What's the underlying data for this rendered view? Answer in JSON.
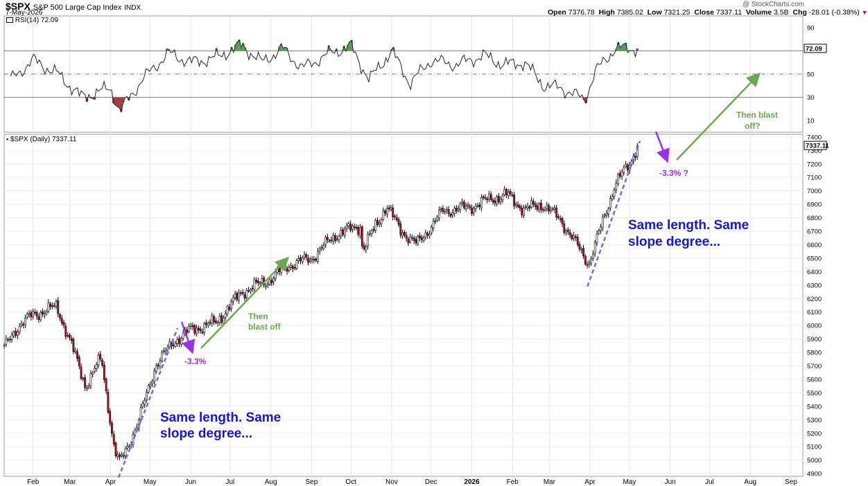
{
  "header": {
    "symbol": "$SPX",
    "name": "S&P 500 Large Cap Index",
    "exchange": "INDX",
    "date": "7-May-2026",
    "watermark": "@ StockCharts.com",
    "open_label": "Open",
    "open": "7376.78",
    "high_label": "High",
    "high": "7385.02",
    "low_label": "Low",
    "low": "7321.25",
    "close_label": "Close",
    "close": "7337.11",
    "volume_label": "Volume",
    "volume": "3.5B",
    "chg_label": "Chg",
    "chg": "-28.01 (-0.38%)"
  },
  "rsi_panel": {
    "label": "RSI(14) 72.09",
    "current_tag": "72.09",
    "ticks": [
      {
        "v": 90,
        "label": "90"
      },
      {
        "v": 50,
        "label": "50"
      },
      {
        "v": 30,
        "label": "30"
      },
      {
        "v": 10,
        "label": "10"
      }
    ]
  },
  "price_panel": {
    "label": "$SPX (Daily) 7337.11",
    "current_tag": "7337.11"
  },
  "annotations": {
    "note_left_line1": "Same length. Same",
    "note_left_line2": "slope degree...",
    "note_right_line1": "Same length. Same",
    "note_right_line2": "slope degree...",
    "drop_left": "-3.3%",
    "drop_right": "-3.3% ?",
    "blast_left_line1": "Then",
    "blast_left_line2": "blast off",
    "blast_right_line1": "Then blast",
    "blast_right_line2": "off?"
  },
  "colors": {
    "up_candle": "#ffffff",
    "down_candle": "#d0021b",
    "slope_line": "#6b6bf0",
    "drop_arrow": "#9b30e8",
    "blast_arrow": "#6aa84f",
    "note_text": "#1515d8",
    "rsi_overbought_fill": "#5e9a5e",
    "rsi_oversold_fill": "#a04040"
  },
  "chart_data": [
    {
      "type": "line",
      "series": "RSI(14)",
      "ylim": [
        0,
        100
      ],
      "reference_lines": [
        70,
        50,
        30
      ],
      "x": [
        "2025-01-15",
        "2025-02-01",
        "2025-02-20",
        "2025-03-10",
        "2025-04-01",
        "2025-04-08",
        "2025-04-25",
        "2025-05-15",
        "2025-06-01",
        "2025-06-20",
        "2025-07-10",
        "2025-07-25",
        "2025-08-10",
        "2025-08-25",
        "2025-09-15",
        "2025-10-01",
        "2025-10-15",
        "2025-11-01",
        "2025-11-15",
        "2025-12-01",
        "2025-12-20",
        "2026-01-10",
        "2026-01-25",
        "2026-02-10",
        "2026-02-25",
        "2026-03-10",
        "2026-03-28",
        "2026-04-05",
        "2026-04-20",
        "2026-05-07"
      ],
      "values": [
        45,
        62,
        50,
        30,
        38,
        18,
        45,
        68,
        60,
        64,
        75,
        60,
        72,
        55,
        68,
        74,
        45,
        70,
        42,
        62,
        58,
        66,
        58,
        60,
        40,
        38,
        28,
        52,
        72,
        72.09
      ]
    },
    {
      "type": "candlestick",
      "title": "$SPX (Daily)",
      "ylim": [
        4880,
        7420
      ],
      "y_ticks": [
        4900,
        5000,
        5100,
        5200,
        5300,
        5400,
        5500,
        5600,
        5700,
        5800,
        5900,
        6000,
        6100,
        6200,
        6300,
        6400,
        6500,
        6600,
        6700,
        6800,
        6900,
        7000,
        7100,
        7200,
        7300,
        7400
      ],
      "x_ticks": [
        "Feb",
        "Mar",
        "Apr",
        "May",
        "Jun",
        "Jul",
        "Aug",
        "Sep",
        "Oct",
        "Nov",
        "Dec",
        "2026",
        "Feb",
        "Mar",
        "Apr",
        "May",
        "Jun",
        "Jul",
        "Aug",
        "Sep"
      ],
      "x_range": [
        "2025-01-10",
        "2026-09-10"
      ],
      "x": [
        "2025-01-10",
        "2025-01-20",
        "2025-02-01",
        "2025-02-19",
        "2025-03-01",
        "2025-03-13",
        "2025-03-25",
        "2025-04-04",
        "2025-04-08",
        "2025-04-22",
        "2025-05-05",
        "2025-05-19",
        "2025-06-01",
        "2025-06-20",
        "2025-07-10",
        "2025-07-31",
        "2025-08-15",
        "2025-09-01",
        "2025-09-20",
        "2025-10-08",
        "2025-10-10",
        "2025-10-28",
        "2025-11-07",
        "2025-11-20",
        "2025-12-10",
        "2025-12-31",
        "2026-01-15",
        "2026-01-28",
        "2026-02-10",
        "2026-02-24",
        "2026-03-10",
        "2026-03-31",
        "2026-04-10",
        "2026-04-20",
        "2026-05-01",
        "2026-05-07"
      ],
      "close": [
        5830,
        5990,
        6080,
        6140,
        5890,
        5550,
        5760,
        5070,
        4980,
        5280,
        5700,
        5880,
        5970,
        6020,
        6250,
        6340,
        6450,
        6500,
        6680,
        6740,
        6560,
        6890,
        6720,
        6600,
        6850,
        6880,
        6940,
        6970,
        6860,
        6900,
        6780,
        6460,
        6750,
        7050,
        7200,
        7337.11
      ]
    }
  ]
}
